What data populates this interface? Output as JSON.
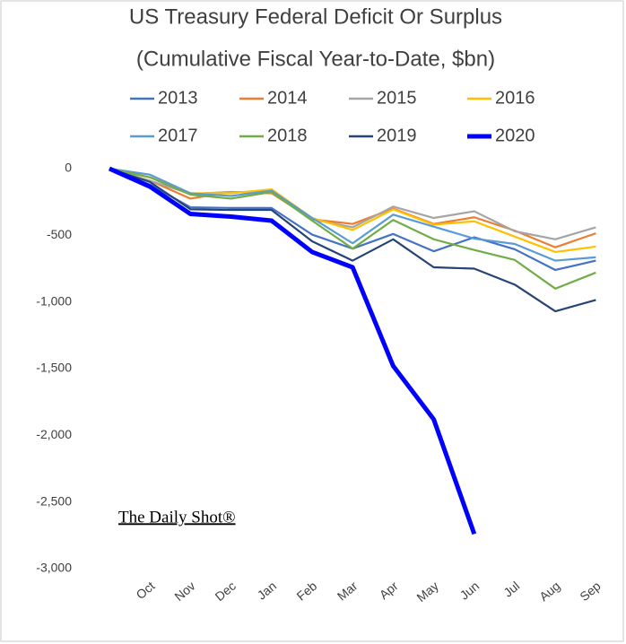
{
  "chart_data": {
    "type": "line",
    "title": "US Treasury Federal Deficit Or Surplus",
    "subtitle": "(Cumulative Fiscal Year-to-Date, $bn)",
    "watermark": "The Daily Shot®",
    "categories": [
      null,
      "Oct",
      "Nov",
      "Dec",
      "Jan",
      "Feb",
      "Mar",
      "Apr",
      "May",
      "Jun",
      "Jul",
      "Aug",
      "Sep"
    ],
    "series": [
      {
        "name": "2013",
        "color": "#4472c4",
        "values": [
          0,
          -120,
          -290,
          -295,
          -295,
          -495,
          -600,
          -490,
          -620,
          -515,
          -605,
          -760,
          -690
        ]
      },
      {
        "name": "2014",
        "color": "#ed7d31",
        "values": [
          0,
          -90,
          -225,
          -175,
          -185,
          -380,
          -415,
          -300,
          -415,
          -365,
          -465,
          -590,
          -485
        ]
      },
      {
        "name": "2015",
        "color": "#a5a5a5",
        "values": [
          0,
          -90,
          -190,
          -175,
          -180,
          -380,
          -440,
          -285,
          -370,
          -320,
          -470,
          -530,
          -440
        ]
      },
      {
        "name": "2016",
        "color": "#ffc000",
        "values": [
          0,
          -65,
          -185,
          -185,
          -155,
          -370,
          -460,
          -305,
          -420,
          -395,
          -510,
          -625,
          -585
        ]
      },
      {
        "name": "2017",
        "color": "#5b9bd5",
        "values": [
          0,
          -45,
          -185,
          -205,
          -165,
          -370,
          -560,
          -345,
          -435,
          -525,
          -565,
          -690,
          -665
        ]
      },
      {
        "name": "2018",
        "color": "#70ad47",
        "values": [
          0,
          -65,
          -195,
          -225,
          -175,
          -390,
          -600,
          -385,
          -530,
          -610,
          -685,
          -900,
          -780
        ]
      },
      {
        "name": "2019",
        "color": "#264478",
        "values": [
          0,
          -100,
          -305,
          -310,
          -310,
          -545,
          -690,
          -530,
          -740,
          -750,
          -870,
          -1070,
          -985
        ]
      },
      {
        "name": "2020",
        "color": "#0000ff",
        "values": [
          0,
          -135,
          -340,
          -360,
          -390,
          -625,
          -740,
          -1480,
          -1880,
          -2740,
          null,
          null,
          null
        ]
      }
    ],
    "ylim": [
      -3000,
      0
    ],
    "yticks": [
      0,
      -500,
      {
        "value": -1000,
        "label": "-1,000"
      },
      {
        "value": -1500,
        "label": "-1,500"
      },
      {
        "value": -2000,
        "label": "-2,000"
      },
      {
        "value": -2500,
        "label": "-2,500"
      },
      {
        "value": -3000,
        "label": "-3,000"
      }
    ],
    "highlight_series": "2020"
  }
}
